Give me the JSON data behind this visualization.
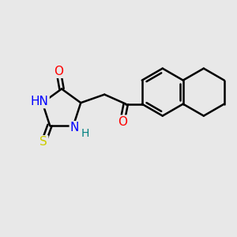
{
  "bg_color": "#e8e8e8",
  "bond_color": "#000000",
  "bond_width": 1.8,
  "atom_colors": {
    "O": "#ff0000",
    "N": "#0000ff",
    "S": "#cccc00",
    "H_label": "#008080"
  },
  "font_size_atoms": 11,
  "font_size_H": 10
}
